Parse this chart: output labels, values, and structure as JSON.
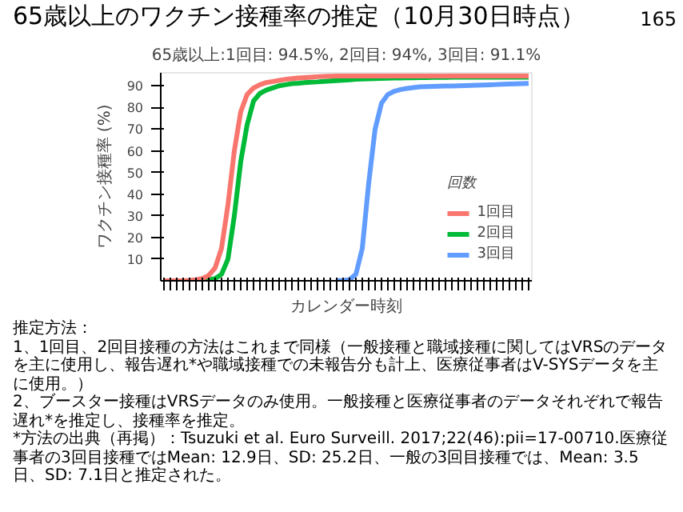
{
  "chart_data": {
    "type": "line",
    "title": "65歳以上のワクチン接種率の推定（10月30日時点）",
    "subtitle": "65歳以上:1回目: 94.5%, 2回目: 94%, 3回目: 91.1%",
    "xlabel": "カレンダー時刻",
    "ylabel": "ワクチン接種率 (%)",
    "legend_title": "回数",
    "legend": "bottom right",
    "grid": false,
    "categories": [
      null,
      null,
      null,
      null,
      null,
      null,
      null,
      null,
      null,
      null,
      null,
      null,
      null,
      null,
      null,
      null,
      null,
      null,
      null,
      null,
      null,
      null,
      null,
      null,
      null,
      null,
      null,
      null,
      null,
      null,
      null,
      null,
      null,
      null,
      null,
      null,
      null,
      null,
      null,
      null,
      null,
      null,
      null,
      null,
      null,
      null,
      null,
      null,
      null,
      null,
      null,
      null,
      null,
      null,
      null,
      null,
      null,
      null
    ],
    "ylim": [
      0,
      96
    ],
    "yticks": [
      10,
      20,
      30,
      40,
      50,
      60,
      70,
      80,
      90
    ],
    "series": [
      {
        "name": "1回目",
        "color": "#f8766d",
        "values": [
          0,
          0,
          0,
          0,
          0.2,
          0.5,
          1,
          2.5,
          6,
          15,
          35,
          60,
          78,
          86,
          89,
          90.5,
          91.5,
          92,
          92.5,
          93,
          93.3,
          93.6,
          93.8,
          94,
          94.2,
          94.3,
          94.4,
          94.5,
          94.5,
          94.5,
          94.5,
          94.5,
          94.5,
          94.5,
          94.5,
          94.5,
          94.5,
          94.5,
          94.5,
          94.5,
          94.5,
          94.5,
          94.5,
          94.5,
          94.5,
          94.5,
          94.5,
          94.5,
          94.5,
          94.5,
          94.5,
          94.5,
          94.5,
          94.5,
          94.5,
          94.5,
          94.5,
          94.5
        ]
      },
      {
        "name": "2回目",
        "color": "#00ba38",
        "values": [
          null,
          null,
          null,
          null,
          null,
          null,
          0.2,
          0.5,
          1,
          3,
          10,
          30,
          55,
          72,
          83,
          86.5,
          88,
          89,
          90,
          90.5,
          91,
          91.2,
          91.5,
          91.7,
          91.8,
          92,
          92.2,
          92.4,
          92.6,
          92.8,
          93,
          93.1,
          93.2,
          93.3,
          93.4,
          93.5,
          93.6,
          93.6,
          93.7,
          93.7,
          93.8,
          93.8,
          93.9,
          93.9,
          93.9,
          94,
          94,
          94,
          94,
          94,
          94,
          94,
          94,
          94,
          94,
          94,
          94,
          94
        ]
      },
      {
        "name": "3回目",
        "color": "#619cff",
        "values": [
          null,
          null,
          null,
          null,
          null,
          null,
          null,
          null,
          null,
          null,
          null,
          null,
          null,
          null,
          null,
          null,
          null,
          null,
          null,
          null,
          null,
          null,
          null,
          null,
          null,
          null,
          null,
          0,
          0.2,
          0.5,
          3,
          15,
          45,
          70,
          82,
          86,
          87.5,
          88.3,
          88.8,
          89.2,
          89.5,
          89.6,
          89.7,
          89.8,
          89.9,
          89.9,
          90,
          90.1,
          90.2,
          90.3,
          90.4,
          90.5,
          90.6,
          90.7,
          90.8,
          90.9,
          91,
          91.1
        ]
      }
    ],
    "annotations": [
      "推定方法：",
      "1、1回目、2回目接種の方法はこれまで同様（一般接種と職域接種に関してはVRSのデータを主に使用し、報告遅れ*や職域接種での未報告分も計上、医療従事者はV-SYSデータを主に使用。）",
      "2、ブースター接種はVRSデータのみ使用。一般接種と医療従事者のデータそれぞれで報告遅れ*を推定し、接種率を推定。",
      "*方法の出典（再掲）：Tsuzuki et al. Euro Surveill. 2017;22(46):pii=17-00710.医療従事者の3回目接種ではMean: 12.9日、SD: 25.2日、一般の3回目接種では、Mean: 3.5日、SD: 7.1日と推定された。",
      "165"
    ]
  }
}
